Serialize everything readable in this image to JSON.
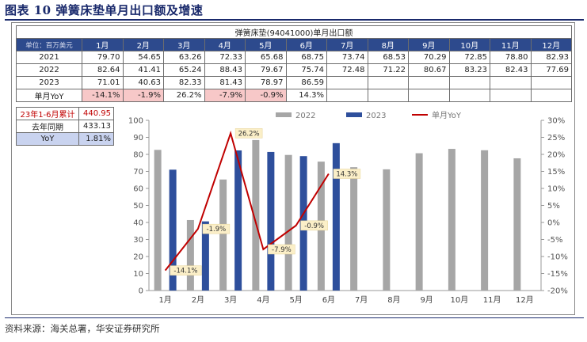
{
  "title": "图表 10  弹簧床垫单月出口额及增速",
  "table": {
    "caption": "弹簧床垫(94041000)单月出口额",
    "unit_label": "单位：百万美元",
    "months": [
      "1月",
      "2月",
      "3月",
      "4月",
      "5月",
      "6月",
      "7月",
      "8月",
      "9月",
      "10月",
      "11月",
      "12月"
    ],
    "rows": [
      {
        "label": "2021",
        "cells": [
          "79.70",
          "54.65",
          "63.26",
          "72.33",
          "65.68",
          "68.75",
          "73.74",
          "68.53",
          "70.29",
          "72.85",
          "78.80",
          "82.93"
        ]
      },
      {
        "label": "2022",
        "cells": [
          "82.64",
          "41.41",
          "65.24",
          "88.43",
          "79.67",
          "75.74",
          "72.48",
          "71.22",
          "80.67",
          "83.23",
          "82.43",
          "77.69"
        ]
      },
      {
        "label": "2023",
        "cells": [
          "71.01",
          "40.63",
          "82.33",
          "81.43",
          "78.97",
          "86.59",
          "",
          "",
          "",
          "",
          "",
          ""
        ]
      },
      {
        "label": "单月YoY",
        "cells": [
          "-14.1%",
          "-1.9%",
          "26.2%",
          "-7.9%",
          "-0.9%",
          "14.3%",
          "",
          "",
          "",
          "",
          "",
          ""
        ]
      }
    ]
  },
  "summary": [
    {
      "label": "23年1-6月累计",
      "value": "440.95"
    },
    {
      "label": "去年同期",
      "value": "433.13"
    },
    {
      "label": "YoY",
      "value": "1.81%"
    }
  ],
  "chart_data": {
    "type": "bar",
    "categories": [
      "1月",
      "2月",
      "3月",
      "4月",
      "5月",
      "6月",
      "7月",
      "8月",
      "9月",
      "10月",
      "11月",
      "12月"
    ],
    "series": [
      {
        "name": "2022",
        "type": "bar",
        "axis": "left",
        "color": "#a6a6a6",
        "values": [
          82.64,
          41.41,
          65.24,
          88.43,
          79.67,
          75.74,
          72.48,
          71.22,
          80.67,
          83.23,
          82.43,
          77.69
        ]
      },
      {
        "name": "2023",
        "type": "bar",
        "axis": "left",
        "color": "#2e4f9c",
        "values": [
          71.01,
          40.63,
          82.33,
          81.43,
          78.97,
          86.59,
          null,
          null,
          null,
          null,
          null,
          null
        ]
      },
      {
        "name": "单月YoY",
        "type": "line",
        "axis": "right",
        "color": "#c00000",
        "values": [
          -14.1,
          -1.9,
          26.2,
          -7.9,
          -0.9,
          14.3,
          null,
          null,
          null,
          null,
          null,
          null
        ],
        "labels": [
          "-14.1%",
          "-1.9%",
          "26.2%",
          "-7.9%",
          "-0.9%",
          "14.3%"
        ]
      }
    ],
    "ylim_left": [
      0,
      100
    ],
    "yticks_left": [
      "0",
      "10",
      "20",
      "30",
      "40",
      "50",
      "60",
      "70",
      "80",
      "90",
      "100"
    ],
    "ylim_right": [
      -20,
      30
    ],
    "yticks_right": [
      "-20%",
      "-15%",
      "-10%",
      "-5%",
      "0%",
      "5%",
      "10%",
      "15%",
      "20%",
      "25%",
      "30%"
    ],
    "legend_position": "top",
    "grid": false
  },
  "source": "资料来源：海关总署，华安证券研究所"
}
